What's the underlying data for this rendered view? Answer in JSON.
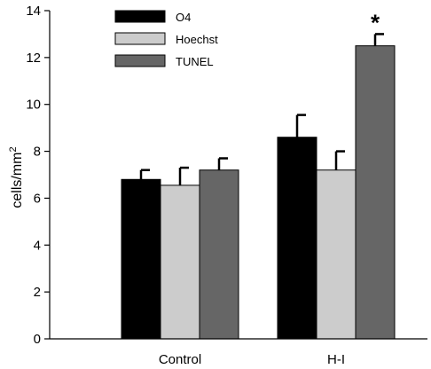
{
  "chart_data": {
    "type": "bar",
    "categories": [
      "Control",
      "H-I"
    ],
    "series": [
      {
        "name": "O4",
        "values": [
          6.8,
          8.6
        ],
        "errors": [
          0.4,
          0.95
        ],
        "color": "#000000"
      },
      {
        "name": "Hoechst",
        "values": [
          6.55,
          7.2
        ],
        "errors": [
          0.75,
          0.8
        ],
        "color": "#cccccc"
      },
      {
        "name": "TUNEL",
        "values": [
          7.2,
          12.5
        ],
        "errors": [
          0.5,
          0.5
        ],
        "color": "#666666"
      }
    ],
    "ylabel_base": "cells/mm",
    "ylabel_sup": "2",
    "ylim": [
      0,
      14
    ],
    "yticks": [
      "0",
      "2",
      "4",
      "6",
      "8",
      "10",
      "12",
      "14"
    ],
    "annotations": [
      {
        "text": "*",
        "category": "H-I",
        "series": "TUNEL"
      }
    ],
    "legend_placement": "top-left",
    "grid": false
  }
}
